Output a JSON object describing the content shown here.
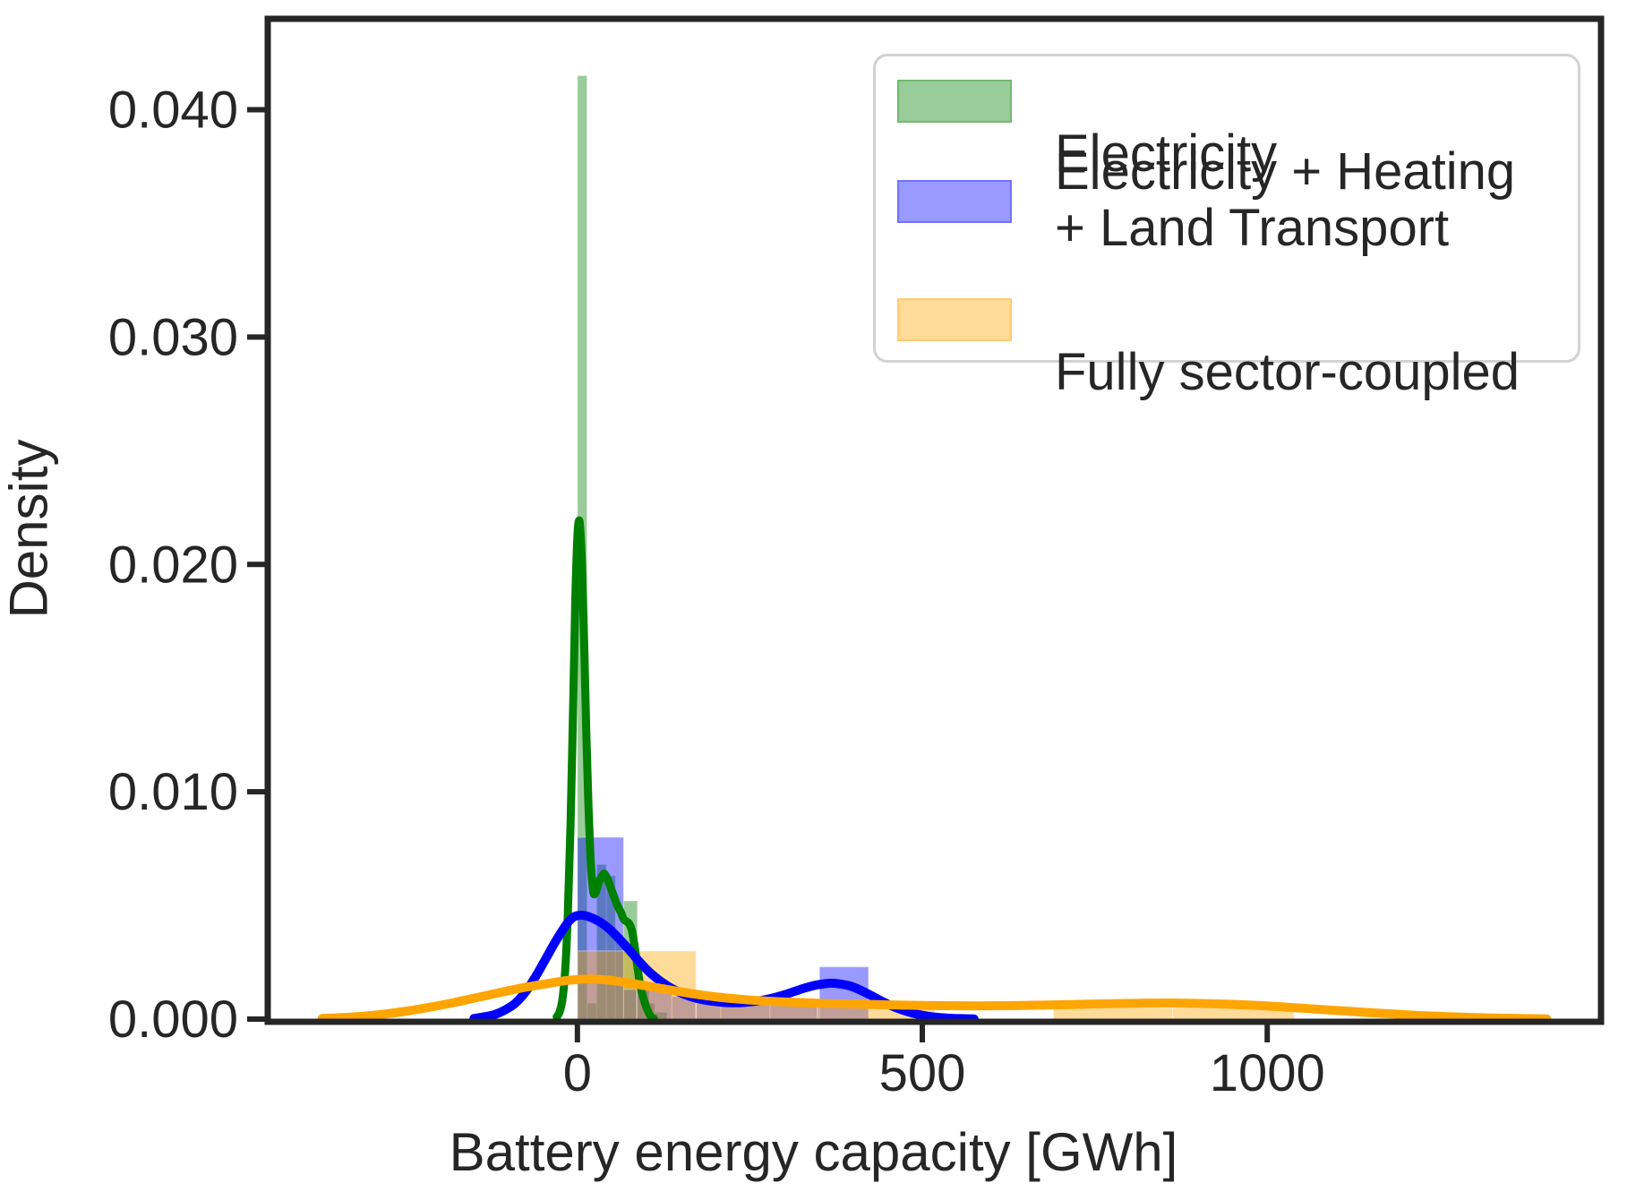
{
  "figure": {
    "background": "#ffffff",
    "text_color": "#262626",
    "spine_color": "#262626"
  },
  "legend": {
    "position": "upper right",
    "items": [
      {
        "label": "Electricity",
        "swatch_color": "rgba(0,128,0,0.4)",
        "swatch_edge": "rgba(0,128,0,0.25)"
      },
      {
        "label_line1": "Electricity + Heating",
        "label_line2": "+ Land Transport",
        "swatch_color": "rgba(0,0,255,0.4)",
        "swatch_edge": "rgba(0,0,255,0.25)"
      },
      {
        "label": "Fully sector-coupled",
        "swatch_color": "rgba(255,165,0,0.4)",
        "swatch_edge": "rgba(255,165,0,0.3)"
      }
    ]
  },
  "chart_data": {
    "type": "histogram+kde",
    "title": "",
    "xlabel": "Battery energy capacity [GWh]",
    "ylabel": "Density",
    "xlim": [
      -445,
      1480
    ],
    "ylim": [
      0,
      0.044
    ],
    "grid": false,
    "x_ticks": [
      {
        "value": 0,
        "label": "0"
      },
      {
        "value": 500,
        "label": "500"
      },
      {
        "value": 1000,
        "label": "1000"
      }
    ],
    "y_ticks": [
      {
        "value": 0.0,
        "label": "0.000"
      },
      {
        "value": 0.01,
        "label": "0.010"
      },
      {
        "value": 0.02,
        "label": "0.020"
      },
      {
        "value": 0.03,
        "label": "0.030"
      },
      {
        "value": 0.04,
        "label": "0.040"
      }
    ],
    "series": [
      {
        "name": "Electricity",
        "line_color": "#008000",
        "fill_color": "rgba(0,128,0,0.4)",
        "line_width": 9,
        "bars": [
          [
            0,
            14,
            0.0415
          ],
          [
            14,
            28,
            0.0007
          ],
          [
            28,
            42,
            0.0068
          ],
          [
            42,
            55,
            0.0063
          ],
          [
            55,
            67,
            0.0037
          ],
          [
            67,
            87,
            0.0052
          ],
          [
            87,
            96,
            0.0014
          ],
          [
            96,
            104,
            0.0014
          ],
          [
            104,
            112,
            0.0007
          ],
          [
            112,
            130,
            0.0003
          ]
        ],
        "kde": [
          [
            -30,
            0.0001
          ],
          [
            -26,
            0.0003
          ],
          [
            -22,
            0.0008
          ],
          [
            -18,
            0.002
          ],
          [
            -14,
            0.0045
          ],
          [
            -10,
            0.0085
          ],
          [
            -6,
            0.014
          ],
          [
            -3,
            0.0185
          ],
          [
            0,
            0.0212
          ],
          [
            2,
            0.0219
          ],
          [
            4,
            0.0216
          ],
          [
            7,
            0.0197
          ],
          [
            10,
            0.0163
          ],
          [
            13,
            0.0125
          ],
          [
            16,
            0.0094
          ],
          [
            19,
            0.0071
          ],
          [
            21,
            0.0062
          ],
          [
            23,
            0.0056
          ],
          [
            25,
            0.0055
          ],
          [
            28,
            0.0057
          ],
          [
            32,
            0.0061
          ],
          [
            36,
            0.0063
          ],
          [
            39,
            0.0064
          ],
          [
            43,
            0.0062
          ],
          [
            48,
            0.0058
          ],
          [
            53,
            0.0054
          ],
          [
            58,
            0.005
          ],
          [
            63,
            0.0047
          ],
          [
            67,
            0.0044
          ],
          [
            71,
            0.0043
          ],
          [
            75,
            0.0042
          ],
          [
            79,
            0.0039
          ],
          [
            83,
            0.0032
          ],
          [
            87,
            0.0023
          ],
          [
            91,
            0.0015
          ],
          [
            95,
            0.001
          ],
          [
            99,
            0.0006
          ],
          [
            103,
            0.0003
          ],
          [
            107,
            0.0001
          ],
          [
            111,
            2e-05
          ]
        ]
      },
      {
        "name": "Electricity + Heating + Land Transport",
        "line_color": "#0000ff",
        "fill_color": "rgba(0,0,255,0.4)",
        "line_width": 10,
        "bars": [
          [
            0,
            67,
            0.008
          ],
          [
            67,
            137,
            0.0013
          ],
          [
            137,
            172,
            0.001
          ],
          [
            172,
            208,
            0.001
          ],
          [
            208,
            279,
            0.0007
          ],
          [
            279,
            351,
            0.0006
          ],
          [
            351,
            422,
            0.0023
          ]
        ],
        "kde": [
          [
            -150,
            3e-05
          ],
          [
            -135,
            0.0001
          ],
          [
            -120,
            0.0002
          ],
          [
            -105,
            0.0004
          ],
          [
            -90,
            0.0007
          ],
          [
            -75,
            0.0012
          ],
          [
            -60,
            0.0019
          ],
          [
            -45,
            0.0027
          ],
          [
            -30,
            0.0035
          ],
          [
            -15,
            0.0042
          ],
          [
            -5,
            0.0045
          ],
          [
            5,
            0.00457
          ],
          [
            15,
            0.00452
          ],
          [
            30,
            0.00432
          ],
          [
            45,
            0.004
          ],
          [
            60,
            0.00355
          ],
          [
            75,
            0.00305
          ],
          [
            90,
            0.00252
          ],
          [
            105,
            0.00205
          ],
          [
            120,
            0.00168
          ],
          [
            135,
            0.00138
          ],
          [
            150,
            0.00115
          ],
          [
            165,
            0.00098
          ],
          [
            180,
            0.00086
          ],
          [
            195,
            0.00079
          ],
          [
            210,
            0.00074
          ],
          [
            225,
            0.00072
          ],
          [
            240,
            0.00073
          ],
          [
            255,
            0.00077
          ],
          [
            270,
            0.00084
          ],
          [
            285,
            0.00094
          ],
          [
            300,
            0.00107
          ],
          [
            315,
            0.00122
          ],
          [
            330,
            0.00137
          ],
          [
            345,
            0.00149
          ],
          [
            360,
            0.00156
          ],
          [
            370,
            0.00158
          ],
          [
            380,
            0.00155
          ],
          [
            395,
            0.00146
          ],
          [
            410,
            0.00128
          ],
          [
            425,
            0.00105
          ],
          [
            440,
            0.00081
          ],
          [
            455,
            0.00059
          ],
          [
            470,
            0.00041
          ],
          [
            485,
            0.00027
          ],
          [
            500,
            0.00017
          ],
          [
            515,
            0.0001
          ],
          [
            530,
            6e-05
          ],
          [
            545,
            3e-05
          ],
          [
            560,
            2e-05
          ],
          [
            575,
            1e-05
          ]
        ]
      },
      {
        "name": "Fully sector-coupled",
        "line_color": "#ffa500",
        "fill_color": "rgba(255,165,0,0.4)",
        "line_width": 10,
        "bars": [
          [
            0,
            86,
            0.003
          ],
          [
            86,
            172,
            0.003
          ],
          [
            172,
            348,
            0.0007
          ],
          [
            348,
            519,
            0.00072
          ],
          [
            690,
            863,
            0.0005
          ],
          [
            863,
            1039,
            0.0005
          ]
        ],
        "kde": [
          [
            -370,
            3e-05
          ],
          [
            -340,
            7e-05
          ],
          [
            -310,
            0.00013
          ],
          [
            -280,
            0.00022
          ],
          [
            -250,
            0.00034
          ],
          [
            -220,
            0.00049
          ],
          [
            -190,
            0.00066
          ],
          [
            -160,
            0.00085
          ],
          [
            -130,
            0.00105
          ],
          [
            -100,
            0.00125
          ],
          [
            -70,
            0.00143
          ],
          [
            -40,
            0.00158
          ],
          [
            -15,
            0.0017
          ],
          [
            0,
            0.00174
          ],
          [
            15,
            0.00176
          ],
          [
            30,
            0.00175
          ],
          [
            50,
            0.0017
          ],
          [
            75,
            0.00159
          ],
          [
            100,
            0.00146
          ],
          [
            125,
            0.00133
          ],
          [
            150,
            0.0012
          ],
          [
            175,
            0.00108
          ],
          [
            200,
            0.00098
          ],
          [
            230,
            0.00089
          ],
          [
            260,
            0.00082
          ],
          [
            290,
            0.00077
          ],
          [
            320,
            0.00073
          ],
          [
            350,
            0.0007
          ],
          [
            385,
            0.00067
          ],
          [
            420,
            0.00065
          ],
          [
            460,
            0.00062
          ],
          [
            500,
            0.0006
          ],
          [
            540,
            0.00059
          ],
          [
            580,
            0.00058
          ],
          [
            620,
            0.00059
          ],
          [
            660,
            0.00061
          ],
          [
            700,
            0.00063
          ],
          [
            740,
            0.00066
          ],
          [
            780,
            0.00068
          ],
          [
            820,
            0.0007
          ],
          [
            860,
            0.00071
          ],
          [
            900,
            0.00069
          ],
          [
            940,
            0.00066
          ],
          [
            980,
            0.00061
          ],
          [
            1020,
            0.00054
          ],
          [
            1060,
            0.00046
          ],
          [
            1100,
            0.00038
          ],
          [
            1140,
            0.0003
          ],
          [
            1180,
            0.00023
          ],
          [
            1220,
            0.00016
          ],
          [
            1260,
            0.00011
          ],
          [
            1300,
            7e-05
          ],
          [
            1340,
            4e-05
          ],
          [
            1380,
            2e-05
          ],
          [
            1405,
            1e-05
          ]
        ]
      }
    ]
  }
}
